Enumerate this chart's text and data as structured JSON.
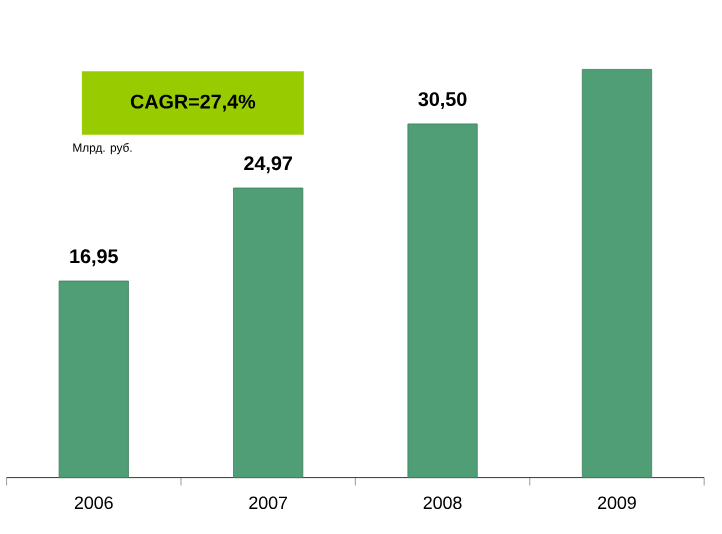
{
  "chart_data": {
    "type": "bar",
    "title": "CAGR=27,4%",
    "ylabel": "Млрд. руб.",
    "categories": [
      "2006",
      "2007",
      "2008",
      "2009"
    ],
    "values": [
      16.95,
      24.97,
      30.5,
      35.2
    ],
    "value_labels": [
      "16,95",
      "24,97",
      "30,50",
      null
    ],
    "color": "#4f9e76"
  }
}
